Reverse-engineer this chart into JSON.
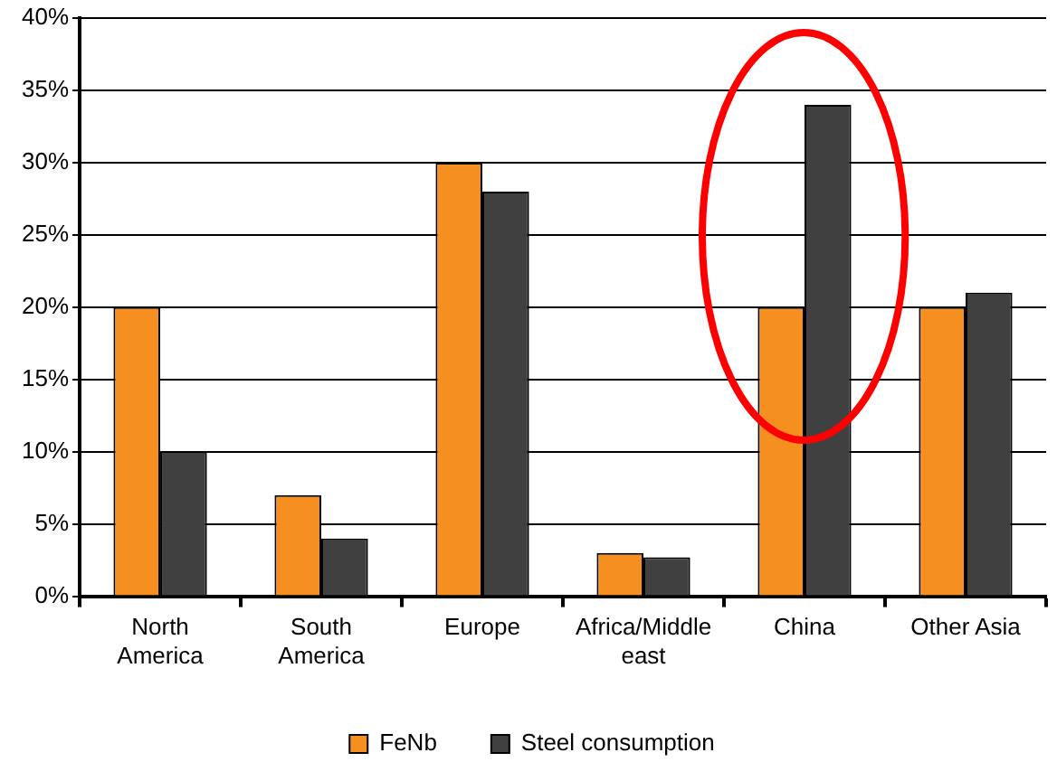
{
  "chart_data": {
    "type": "bar",
    "categories": [
      "North America",
      "South America",
      "Europe",
      "Africa/Middle east",
      "China",
      "Other Asia"
    ],
    "series": [
      {
        "name": "FeNb",
        "color": "#f58f1f",
        "values": [
          20,
          7,
          30,
          3,
          20,
          20
        ]
      },
      {
        "name": "Steel consumption",
        "color": "#404040",
        "values": [
          10,
          4,
          28,
          2.7,
          34,
          21
        ]
      }
    ],
    "ylim": [
      0,
      40
    ],
    "yticks": [
      {
        "value": 0,
        "label": "0%"
      },
      {
        "value": 5,
        "label": "5%"
      },
      {
        "value": 10,
        "label": "10%"
      },
      {
        "value": 15,
        "label": "15%"
      },
      {
        "value": 20,
        "label": "20%"
      },
      {
        "value": 25,
        "label": "25%"
      },
      {
        "value": 30,
        "label": "30%"
      },
      {
        "value": 35,
        "label": "35%"
      },
      {
        "value": 40,
        "label": "40%"
      }
    ],
    "grid": "y",
    "legend": "bottom"
  }
}
